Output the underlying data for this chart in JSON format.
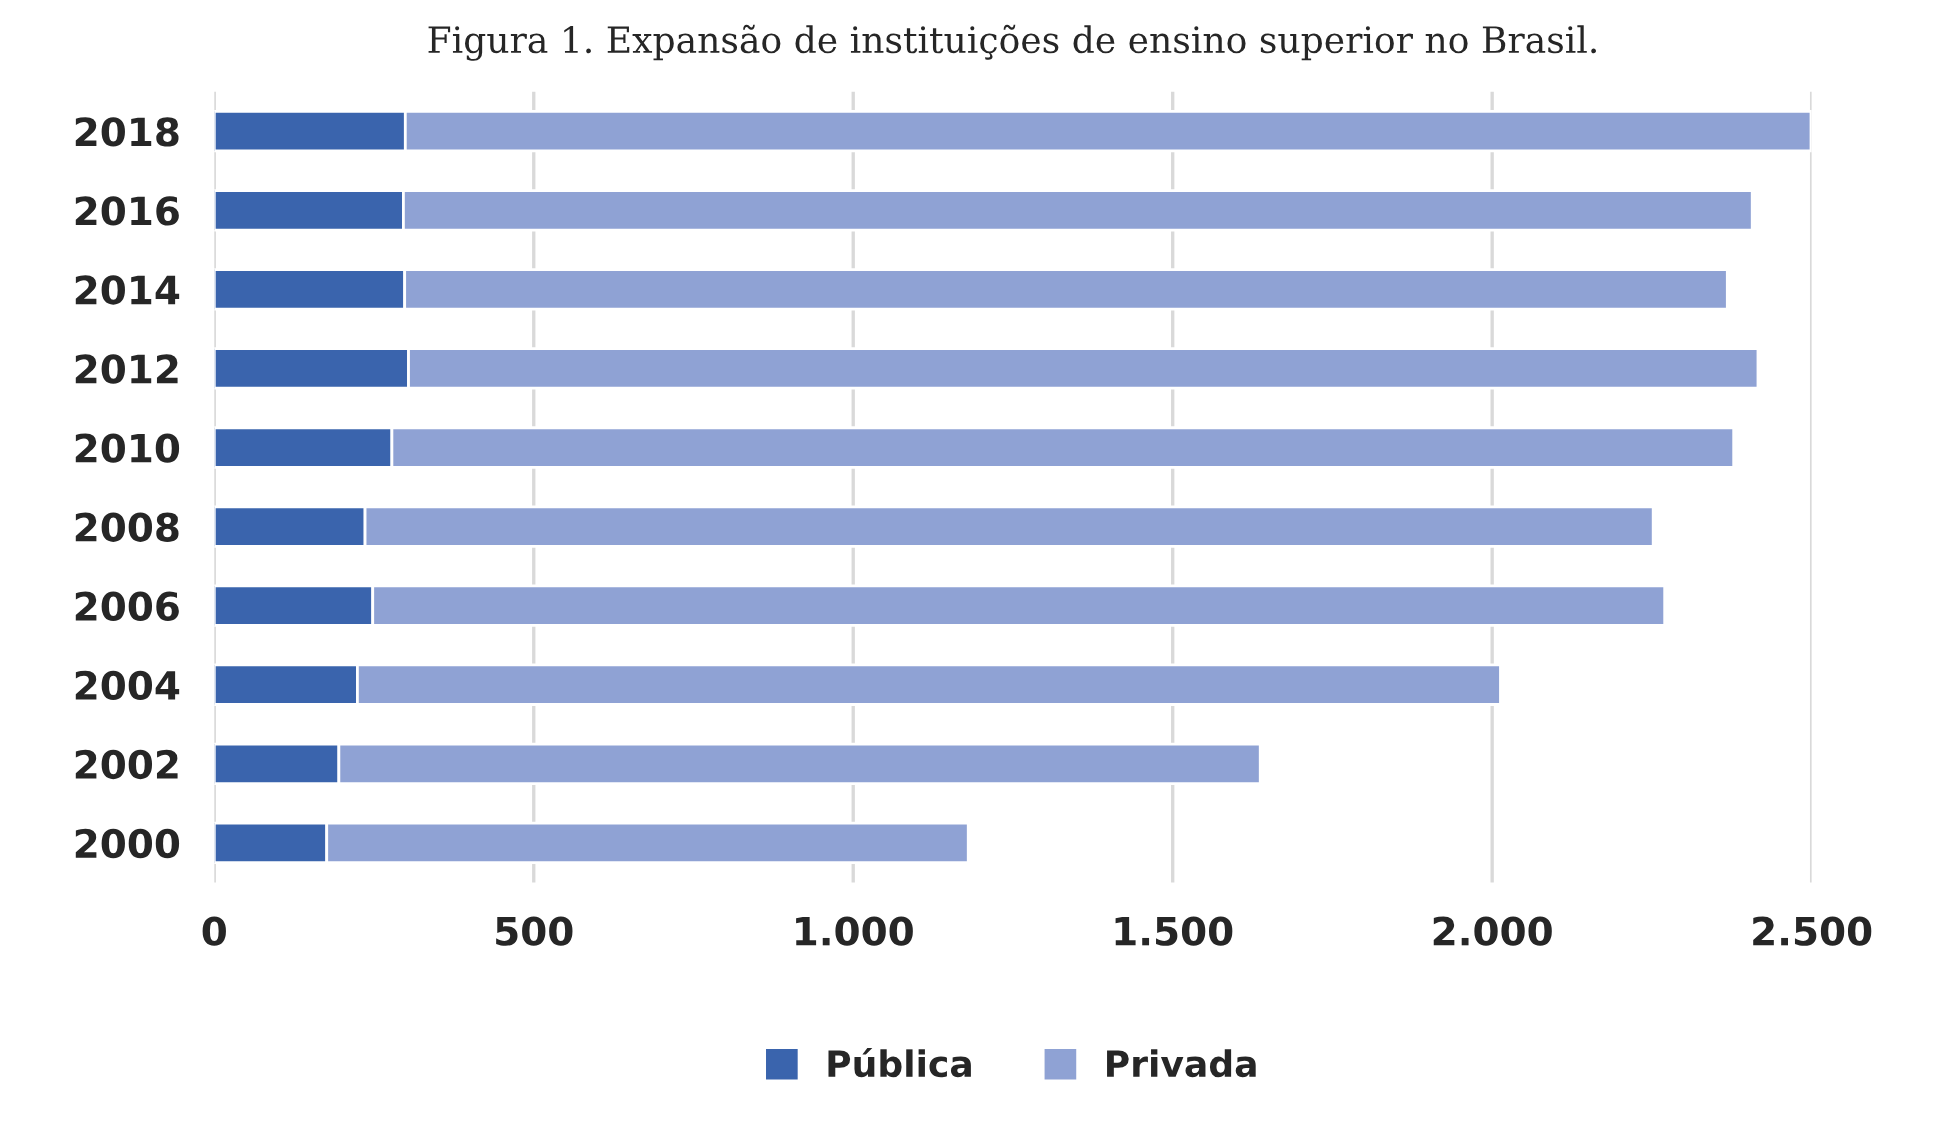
{
  "chart_data": {
    "type": "bar",
    "orientation": "horizontal",
    "stacked": true,
    "title": "Figura 1. Expansão de instituições de ensino superior no Brasil.",
    "categories": [
      "2018",
      "2016",
      "2014",
      "2012",
      "2010",
      "2008",
      "2006",
      "2004",
      "2002",
      "2000"
    ],
    "series": [
      {
        "name": "Pública",
        "color": "#3a64ad",
        "values": [
          299,
          296,
          298,
          304,
          278,
          236,
          248,
          224,
          195,
          176
        ]
      },
      {
        "name": "Privada",
        "color": "#8fa2d4",
        "values": [
          2200,
          2111,
          2070,
          2112,
          2100,
          2016,
          2022,
          1789,
          1442,
          1004
        ]
      }
    ],
    "xlim": [
      0,
      2500
    ],
    "xticks": [
      {
        "value": 0,
        "label": "0"
      },
      {
        "value": 500,
        "label": "500"
      },
      {
        "value": 1000,
        "label": "1.000"
      },
      {
        "value": 1500,
        "label": "1.500"
      },
      {
        "value": 2000,
        "label": "2.000"
      },
      {
        "value": 2500,
        "label": "2.500"
      }
    ],
    "grid": "x",
    "legend": "bottom"
  }
}
